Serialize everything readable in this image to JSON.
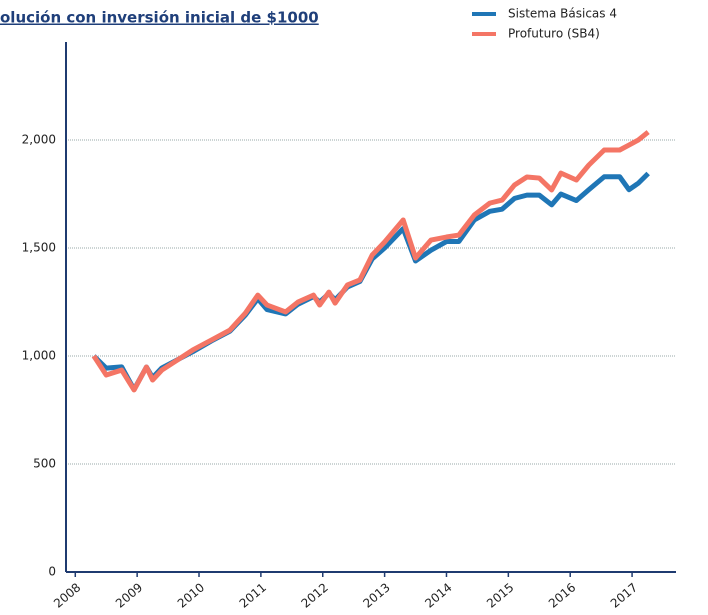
{
  "chart_data": {
    "type": "line",
    "title": "olución con inversión inicial de $1000",
    "xlim": [
      2007.85,
      2017.71
    ],
    "xticks": [
      2008,
      2009,
      2010,
      2011,
      2012,
      2013,
      2014,
      2015,
      2016,
      2017
    ],
    "ylim": [
      0,
      2454
    ],
    "yticks": [
      0,
      500,
      {
        "value": 1000,
        "label": "1,000"
      },
      {
        "value": 1500,
        "label": "1,500"
      },
      {
        "value": 2000,
        "label": "2,000"
      }
    ],
    "grid": true,
    "legend": "top-right",
    "x": [
      2008.3,
      2008.5,
      2008.75,
      2008.95,
      2009.15,
      2009.25,
      2009.4,
      2009.6,
      2009.9,
      2010.2,
      2010.5,
      2010.75,
      2010.95,
      2011.1,
      2011.4,
      2011.6,
      2011.85,
      2011.95,
      2012.1,
      2012.2,
      2012.4,
      2012.6,
      2012.8,
      2013.0,
      2013.3,
      2013.5,
      2013.75,
      2014.0,
      2014.2,
      2014.45,
      2014.7,
      2014.9,
      2015.1,
      2015.3,
      2015.5,
      2015.7,
      2015.85,
      2016.1,
      2016.3,
      2016.55,
      2016.8,
      2016.95,
      2017.1,
      2017.26
    ],
    "series": [
      {
        "name": "Sistema Básicas 4",
        "color": "#1f76b6",
        "values": [
          1000,
          944,
          950,
          845,
          949,
          900,
          945,
          975,
          1020,
          1070,
          1115,
          1190,
          1265,
          1215,
          1195,
          1240,
          1275,
          1250,
          1290,
          1260,
          1320,
          1345,
          1450,
          1500,
          1590,
          1440,
          1490,
          1530,
          1530,
          1630,
          1670,
          1680,
          1730,
          1745,
          1745,
          1700,
          1750,
          1720,
          1770,
          1830,
          1830,
          1770,
          1800,
          1845
        ]
      },
      {
        "name": "Profuturo (SB4)",
        "color": "#f47565",
        "values": [
          1000,
          912,
          935,
          843,
          949,
          889,
          935,
          972,
          1028,
          1074,
          1120,
          1199,
          1282,
          1236,
          1204,
          1250,
          1282,
          1236,
          1296,
          1245,
          1329,
          1352,
          1468,
          1528,
          1630,
          1454,
          1537,
          1551,
          1560,
          1653,
          1708,
          1722,
          1792,
          1829,
          1824,
          1769,
          1847,
          1815,
          1884,
          1954,
          1954,
          1977,
          2000,
          2037
        ]
      }
    ]
  }
}
